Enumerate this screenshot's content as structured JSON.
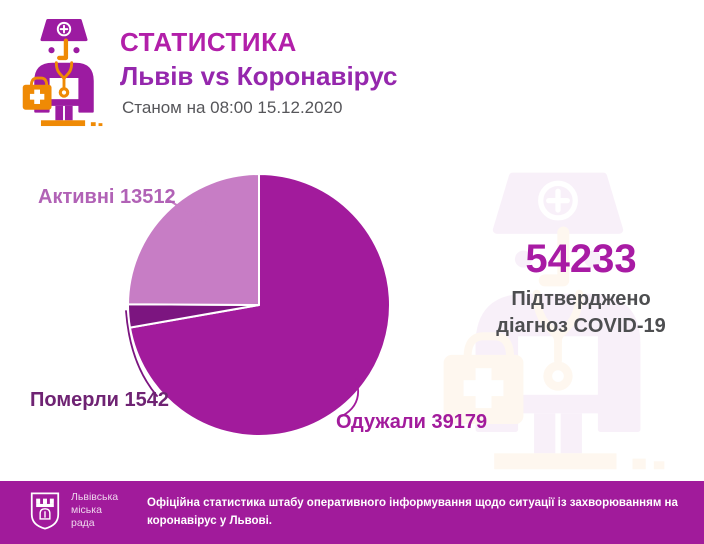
{
  "header": {
    "title": "СТАТИСТИКА",
    "subtitle": "Львів vs Коронавірус",
    "timestamp": "Станом на 08:00 15.12.2020"
  },
  "summary": {
    "confirmed_total": "54233",
    "caption_line1": "Підтверджено",
    "caption_line2": "діагноз COVID-19"
  },
  "pie_labels": {
    "active": "Активні 13512",
    "deaths": "Померли 1542",
    "recovered": "Одужали 39179"
  },
  "chart_data": {
    "type": "pie",
    "title": "Львів vs Коронавірус",
    "subtitle": "Станом на 08:00 15.12.2020",
    "total": 54233,
    "total_caption": "Підтверджено діагноз COVID-19",
    "start_angle_deg": 0,
    "direction": "clockwise",
    "slices": [
      {
        "label": "Одужали",
        "value": 39179,
        "color": "#a21b9c"
      },
      {
        "label": "Померли",
        "value": 1542,
        "color": "#7c1580"
      },
      {
        "label": "Активні",
        "value": 13512,
        "color": "#c77dc5"
      }
    ],
    "legend_position": "callout-labels"
  },
  "colors": {
    "accent_magenta": "#b21fa9",
    "accent_purple": "#9527ad",
    "text_gray": "#56565a",
    "caption_gray": "#4d4e50",
    "footer_bg": "#a11b9b",
    "icon_purple": "#9c1ba1",
    "icon_orange": "#ef8a05"
  },
  "footer": {
    "logo_line1": "Львівська",
    "logo_line2": "міська",
    "logo_line3": "рада",
    "text": "Офіційна статистика штабу оперативного інформування щодо ситуації із захворюванням на коронавірус у Львові."
  }
}
